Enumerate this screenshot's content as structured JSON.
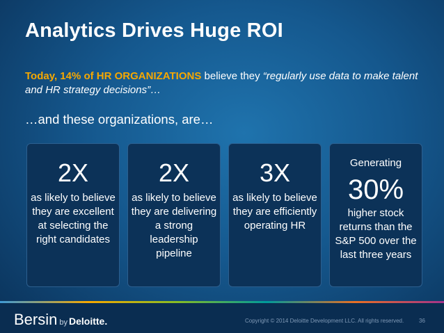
{
  "slide": {
    "title": "Analytics Drives Huge ROI",
    "intro": {
      "highlight": "Today, 14% of HR ORGANIZATIONS",
      "plain": " believe they ",
      "quote": "“regularly use data to make talent and HR strategy decisions”…"
    },
    "subtitle": "…and these organizations, are…"
  },
  "cards": [
    {
      "lead": "",
      "big": "2X",
      "desc": "as likely to believe they are excellent at selecting the right candidates"
    },
    {
      "lead": "",
      "big": "2X",
      "desc": "as likely to believe they are delivering a strong leadership pipeline"
    },
    {
      "lead": "",
      "big": "3X",
      "desc": "as likely to believe they are efficiently operating HR"
    },
    {
      "lead": "Generating",
      "big": "30%",
      "desc": "higher stock returns than the S&P 500 over the last three years"
    }
  ],
  "footer": {
    "brand": "Bersin",
    "by": "by",
    "deloitte": "Deloitte.",
    "copyright": "Copyright © 2014 Deloitte Development LLC. All rights reserved.",
    "page": "36"
  },
  "colors": {
    "accent": "#f6a800",
    "background": "#15588e",
    "card": "#0c3258"
  }
}
